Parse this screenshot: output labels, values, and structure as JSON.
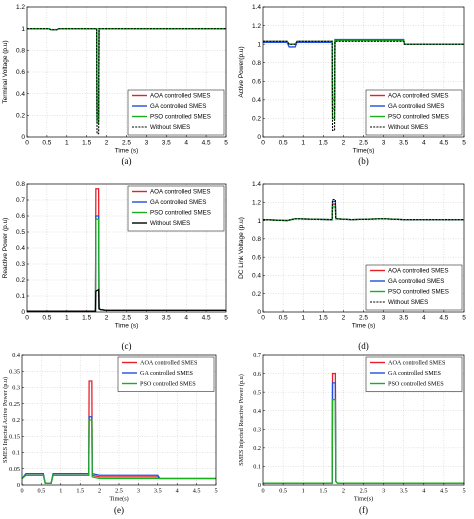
{
  "chart_data": [
    {
      "type": "line",
      "panel_label": "(a)",
      "xlabel": "Time (s)",
      "ylabel": "Terminal Voltage (p.u)",
      "xlim": [
        0,
        5
      ],
      "ylim": [
        0,
        1.2
      ],
      "xticks": [
        0,
        0.5,
        1,
        1.5,
        2,
        2.5,
        3,
        3.5,
        4,
        4.5,
        5
      ],
      "yticks": [
        0,
        0.2,
        0.4,
        0.6,
        0.8,
        1,
        1.2
      ],
      "xtick_labels": [
        "0",
        "0.5",
        "1",
        "1.5",
        "2",
        "2.5",
        "3",
        "3.5",
        "4",
        "4.5",
        "5"
      ],
      "ytick_labels": [
        "0",
        "0.2",
        "0.4",
        "0.6",
        "0.8",
        "1",
        "1.2"
      ],
      "grid": true,
      "legend_position": "bottom-right",
      "series": [
        {
          "name": "AOA controlled SMES",
          "color": "#e8202a",
          "dashed": false,
          "x": [
            0,
            0.55,
            0.6,
            0.75,
            0.8,
            1.75,
            1.76,
            1.8,
            1.81,
            1.83,
            5
          ],
          "y": [
            1.0,
            1.0,
            0.99,
            0.99,
            1.0,
            1.0,
            0.22,
            0.22,
            1.0,
            1.0,
            1.0
          ]
        },
        {
          "name": "GA controlled SMES",
          "color": "#1f4fe0",
          "dashed": false,
          "x": [
            0,
            0.55,
            0.6,
            0.75,
            0.8,
            1.75,
            1.76,
            1.8,
            1.81,
            1.83,
            5
          ],
          "y": [
            1.0,
            1.0,
            0.99,
            0.99,
            1.0,
            1.0,
            0.17,
            0.17,
            1.0,
            1.0,
            1.0
          ]
        },
        {
          "name": "PSO controlled SMES",
          "color": "#19b01e",
          "dashed": false,
          "x": [
            0,
            0.55,
            0.6,
            0.75,
            0.8,
            1.75,
            1.76,
            1.8,
            1.81,
            1.83,
            5
          ],
          "y": [
            1.0,
            1.0,
            0.99,
            0.99,
            1.0,
            1.0,
            0.13,
            0.13,
            1.0,
            1.0,
            1.0
          ]
        },
        {
          "name": "Without SMES",
          "color": "#000000",
          "dashed": true,
          "x": [
            0,
            0.55,
            0.6,
            0.75,
            0.8,
            1.75,
            1.76,
            1.8,
            1.81,
            1.83,
            5
          ],
          "y": [
            1.0,
            1.0,
            0.99,
            0.99,
            1.0,
            1.0,
            0.03,
            0.03,
            1.0,
            1.0,
            1.0
          ]
        }
      ]
    },
    {
      "type": "line",
      "panel_label": "(b)",
      "xlabel": "Time(s)",
      "ylabel": "Active Power(p.u)",
      "xlim": [
        0,
        5
      ],
      "ylim": [
        0,
        1.4
      ],
      "xticks": [
        0,
        0.5,
        1,
        1.5,
        2,
        2.5,
        3,
        3.5,
        4,
        4.5,
        5
      ],
      "yticks": [
        0,
        0.2,
        0.4,
        0.6,
        0.8,
        1,
        1.2,
        1.4
      ],
      "xtick_labels": [
        "0",
        "0.5",
        "1",
        "1.5",
        "2",
        "2.5",
        "3",
        "3.5",
        "4",
        "4.5",
        "5"
      ],
      "ytick_labels": [
        "0",
        "0.2",
        "0.4",
        "0.6",
        "0.8",
        "1",
        "1.2",
        "1.4"
      ],
      "grid": true,
      "legend_position": "bottom-right",
      "series": [
        {
          "name": "AOA controlled SMES",
          "color": "#e8202a",
          "dashed": false,
          "x": [
            0,
            0.6,
            0.65,
            0.8,
            0.85,
            1.72,
            1.73,
            1.78,
            1.79,
            1.82,
            1.85,
            2.9,
            3.5,
            3.52,
            5
          ],
          "y": [
            1.03,
            1.03,
            1.0,
            1.0,
            1.03,
            1.03,
            0.4,
            0.4,
            1.04,
            1.04,
            1.04,
            1.04,
            1.04,
            1.0,
            1.0
          ]
        },
        {
          "name": "GA controlled SMES",
          "color": "#1f4fe0",
          "dashed": false,
          "x": [
            0,
            0.6,
            0.65,
            0.8,
            0.85,
            1.72,
            1.73,
            1.78,
            1.79,
            1.82,
            1.85,
            2.9,
            3.5,
            3.52,
            5
          ],
          "y": [
            1.02,
            1.02,
            0.97,
            0.97,
            1.02,
            1.02,
            0.3,
            0.3,
            1.05,
            1.05,
            1.05,
            1.05,
            1.05,
            1.0,
            1.0
          ]
        },
        {
          "name": "PSO controlled SMES",
          "color": "#19b01e",
          "dashed": false,
          "x": [
            0,
            0.6,
            0.65,
            0.8,
            0.85,
            1.72,
            1.73,
            1.78,
            1.79,
            1.82,
            1.85,
            2.9,
            3.5,
            3.52,
            5
          ],
          "y": [
            1.03,
            1.03,
            1.0,
            1.0,
            1.03,
            1.03,
            0.2,
            0.2,
            1.04,
            1.04,
            1.04,
            1.04,
            1.04,
            1.0,
            1.0
          ]
        },
        {
          "name": "Without SMES",
          "color": "#000000",
          "dashed": true,
          "x": [
            0,
            0.6,
            0.65,
            0.8,
            0.85,
            1.72,
            1.73,
            1.78,
            1.79,
            1.82,
            1.85,
            2.9,
            3.5,
            3.52,
            5
          ],
          "y": [
            1.03,
            1.03,
            1.0,
            1.0,
            1.03,
            1.03,
            0.07,
            0.07,
            1.03,
            1.03,
            1.03,
            1.03,
            1.03,
            1.0,
            1.0
          ]
        }
      ]
    },
    {
      "type": "line",
      "panel_label": "(c)",
      "xlabel": "Time (s)",
      "ylabel": "Reactive Power (p.u)",
      "xlim": [
        0,
        5
      ],
      "ylim": [
        0,
        0.8
      ],
      "xticks": [
        0,
        0.5,
        1,
        1.5,
        2,
        2.5,
        3,
        3.5,
        4,
        4.5,
        5
      ],
      "yticks": [
        0,
        0.1,
        0.2,
        0.3,
        0.4,
        0.5,
        0.6,
        0.7,
        0.8
      ],
      "xtick_labels": [
        "0",
        "0.5",
        "1",
        "1.5",
        "2",
        "2.5",
        "3",
        "3.5",
        "4",
        "4.5",
        "5"
      ],
      "ytick_labels": [
        "0",
        "0.1",
        "0.2",
        "0.3",
        "0.4",
        "0.5",
        "0.6",
        "0.7",
        "0.8"
      ],
      "grid": true,
      "legend_position": "top-right",
      "series": [
        {
          "name": "AOA controlled SMES",
          "color": "#e8202a",
          "dashed": false,
          "x": [
            0,
            1.7,
            1.72,
            1.73,
            1.8,
            1.81,
            1.85,
            2.0,
            5
          ],
          "y": [
            0.005,
            0.005,
            0.005,
            0.77,
            0.77,
            0.02,
            0.015,
            0.01,
            0.01
          ]
        },
        {
          "name": "GA controlled SMES",
          "color": "#1f4fe0",
          "dashed": false,
          "x": [
            0,
            1.7,
            1.72,
            1.73,
            1.8,
            1.81,
            1.85,
            2.0,
            5
          ],
          "y": [
            0.005,
            0.005,
            0.005,
            0.6,
            0.6,
            0.02,
            0.015,
            0.01,
            0.01
          ]
        },
        {
          "name": "PSO controlled SMES",
          "color": "#19b01e",
          "dashed": false,
          "x": [
            0,
            1.7,
            1.72,
            1.73,
            1.8,
            1.81,
            1.85,
            2.0,
            5
          ],
          "y": [
            0.005,
            0.005,
            0.005,
            0.58,
            0.58,
            0.02,
            0.015,
            0.01,
            0.01
          ]
        },
        {
          "name": "Without SMES",
          "color": "#000000",
          "dashed": false,
          "x": [
            0,
            1.7,
            1.72,
            1.73,
            1.8,
            1.81,
            1.85,
            2.0,
            5
          ],
          "y": [
            0.005,
            0.005,
            0.005,
            0.13,
            0.14,
            0.02,
            0.015,
            0.01,
            0.01
          ]
        }
      ]
    },
    {
      "type": "line",
      "panel_label": "(d)",
      "xlabel": "Time (s)",
      "ylabel": "DC Link Voltage (p.u)",
      "xlim": [
        0,
        5
      ],
      "ylim": [
        0,
        1.4
      ],
      "xticks": [
        0,
        0.5,
        1,
        1.5,
        2,
        2.5,
        3,
        3.5,
        4,
        4.5,
        5
      ],
      "yticks": [
        0,
        0.2,
        0.4,
        0.6,
        0.8,
        1,
        1.2,
        1.4
      ],
      "xtick_labels": [
        "0",
        "0.5",
        "1",
        "1.5",
        "2",
        "2.5",
        "3",
        "3.5",
        "4",
        "4.5",
        "5"
      ],
      "ytick_labels": [
        "0",
        "0.2",
        "0.4",
        "0.6",
        "0.8",
        "1",
        "1.2",
        "1.4"
      ],
      "grid": true,
      "legend_position": "bottom-right",
      "series": [
        {
          "name": "AOA controlled SMES",
          "color": "#e8202a",
          "dashed": false,
          "x": [
            0,
            0.6,
            0.8,
            1.72,
            1.73,
            1.8,
            1.81,
            2.2,
            3.0,
            3.5,
            5
          ],
          "y": [
            1.01,
            1.0,
            1.02,
            1.01,
            1.18,
            1.18,
            1.02,
            1.01,
            1.02,
            1.01,
            1.01
          ]
        },
        {
          "name": "GA controlled SMES",
          "color": "#1f4fe0",
          "dashed": false,
          "x": [
            0,
            0.6,
            0.8,
            1.72,
            1.73,
            1.8,
            1.81,
            2.2,
            3.0,
            3.5,
            5
          ],
          "y": [
            1.01,
            1.0,
            1.02,
            1.01,
            1.21,
            1.21,
            1.02,
            1.01,
            1.02,
            1.01,
            1.01
          ]
        },
        {
          "name": "PSO controlled SMES",
          "color": "#19b01e",
          "dashed": false,
          "x": [
            0,
            0.6,
            0.8,
            1.72,
            1.73,
            1.8,
            1.81,
            2.2,
            3.0,
            3.5,
            5
          ],
          "y": [
            1.01,
            1.0,
            1.02,
            1.01,
            1.15,
            1.15,
            1.02,
            1.01,
            1.02,
            1.01,
            1.01
          ]
        },
        {
          "name": "Without SMES",
          "color": "#000000",
          "dashed": true,
          "x": [
            0,
            0.6,
            0.8,
            1.72,
            1.73,
            1.8,
            1.81,
            2.2,
            3.0,
            3.5,
            5
          ],
          "y": [
            1.01,
            1.0,
            1.02,
            1.01,
            1.23,
            1.23,
            1.02,
            1.01,
            1.02,
            1.01,
            1.01
          ]
        }
      ]
    },
    {
      "type": "line",
      "panel_label": "(e)",
      "xlabel": "Time(s)",
      "ylabel": "SMES Injected Active Power (p.u)",
      "xlim": [
        0,
        5
      ],
      "ylim": [
        0,
        0.4
      ],
      "xticks": [
        0,
        0.5,
        1,
        1.5,
        2,
        2.5,
        3,
        3.5,
        4,
        4.5,
        5
      ],
      "yticks": [
        0,
        0.05,
        0.1,
        0.15,
        0.2,
        0.25,
        0.3,
        0.35,
        0.4
      ],
      "xtick_labels": [
        "0",
        "0.5",
        "1",
        "1.5",
        "2",
        "2.5",
        "3",
        "3.5",
        "4",
        "4.5",
        "5"
      ],
      "ytick_labels": [
        "0",
        "0.05",
        "0.1",
        "0.15",
        "0.2",
        "0.25",
        "0.3",
        "0.35",
        "0.4"
      ],
      "grid": true,
      "legend_position": "top-right",
      "series": [
        {
          "name": "AOA controlled SMES",
          "color": "#e8202a",
          "dashed": false,
          "x": [
            0,
            0.1,
            0.55,
            0.6,
            0.75,
            0.8,
            1.72,
            1.73,
            1.8,
            1.81,
            2.0,
            3.0,
            3.5,
            3.55,
            5
          ],
          "y": [
            0.02,
            0.03,
            0.03,
            0.005,
            0.005,
            0.03,
            0.03,
            0.32,
            0.32,
            0.03,
            0.025,
            0.025,
            0.025,
            0.02,
            0.02
          ]
        },
        {
          "name": "GA controlled SMES",
          "color": "#1f4fe0",
          "dashed": false,
          "x": [
            0,
            0.1,
            0.55,
            0.6,
            0.75,
            0.8,
            1.72,
            1.73,
            1.8,
            1.81,
            2.0,
            3.0,
            3.5,
            3.55,
            5
          ],
          "y": [
            0.02,
            0.035,
            0.035,
            0.005,
            0.005,
            0.035,
            0.035,
            0.21,
            0.21,
            0.035,
            0.03,
            0.03,
            0.03,
            0.02,
            0.02
          ]
        },
        {
          "name": "PSO controlled SMES",
          "color": "#19b01e",
          "dashed": false,
          "x": [
            0,
            0.1,
            0.55,
            0.6,
            0.75,
            0.8,
            1.72,
            1.73,
            1.8,
            1.81,
            2.0,
            3.0,
            3.5,
            3.55,
            5
          ],
          "y": [
            0.02,
            0.03,
            0.03,
            0.005,
            0.005,
            0.03,
            0.03,
            0.2,
            0.2,
            0.025,
            0.02,
            0.02,
            0.02,
            0.02,
            0.02
          ]
        }
      ]
    },
    {
      "type": "line",
      "panel_label": "(f)",
      "xlabel": "Time(s)",
      "ylabel": "SMES Injected Reactive Power (p.u)",
      "xlim": [
        0,
        5
      ],
      "ylim": [
        0,
        0.7
      ],
      "xticks": [
        0,
        0.5,
        1,
        1.5,
        2,
        2.5,
        3,
        3.5,
        4,
        4.5,
        5
      ],
      "yticks": [
        0,
        0.1,
        0.2,
        0.3,
        0.4,
        0.5,
        0.6,
        0.7
      ],
      "xtick_labels": [
        "0",
        "0.5",
        "1",
        "1.5",
        "2",
        "2.5",
        "3",
        "3.5",
        "4",
        "4.5",
        "5"
      ],
      "ytick_labels": [
        "0",
        "0.1",
        "0.2",
        "0.3",
        "0.4",
        "0.5",
        "0.6",
        "0.7"
      ],
      "grid": true,
      "legend_position": "top-right",
      "series": [
        {
          "name": "AOA controlled SMES",
          "color": "#e8202a",
          "dashed": false,
          "x": [
            0,
            1.72,
            1.73,
            1.8,
            1.81,
            1.85,
            5
          ],
          "y": [
            0.01,
            0.01,
            0.6,
            0.6,
            0.02,
            0.01,
            0.01
          ]
        },
        {
          "name": "GA controlled SMES",
          "color": "#1f4fe0",
          "dashed": false,
          "x": [
            0,
            1.72,
            1.73,
            1.8,
            1.81,
            1.85,
            5
          ],
          "y": [
            0.01,
            0.01,
            0.55,
            0.55,
            0.02,
            0.01,
            0.01
          ]
        },
        {
          "name": "PSO controlled SMES",
          "color": "#19b01e",
          "dashed": false,
          "x": [
            0,
            1.72,
            1.73,
            1.8,
            1.81,
            1.85,
            5
          ],
          "y": [
            0.01,
            0.01,
            0.46,
            0.46,
            0.02,
            0.01,
            0.01
          ]
        }
      ]
    }
  ]
}
